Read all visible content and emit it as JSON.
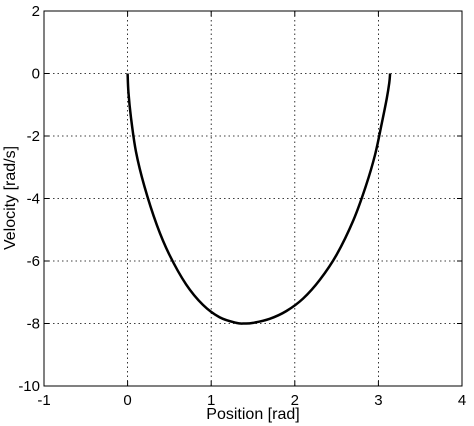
{
  "chart_data": {
    "type": "line",
    "title": "",
    "xlabel": "Position [rad]",
    "ylabel": "Velocity [rad/s]",
    "xlim": [
      -1,
      4
    ],
    "ylim": [
      -10,
      2
    ],
    "x_ticks": [
      -1,
      0,
      1,
      2,
      3,
      4
    ],
    "y_ticks": [
      -10,
      -8,
      -6,
      -4,
      -2,
      0,
      2
    ],
    "x_tick_labels": [
      "-1",
      "0",
      "1",
      "2",
      "3",
      "4"
    ],
    "y_tick_labels": [
      "-10",
      "-8",
      "-6",
      "-4",
      "-2",
      "0",
      "2"
    ],
    "grid": true,
    "grid_style": "dotted",
    "series": [
      {
        "color": "#000000",
        "points": [
          [
            0.0,
            0.0
          ],
          [
            0.01,
            -0.6
          ],
          [
            0.04,
            -1.4
          ],
          [
            0.1,
            -2.5
          ],
          [
            0.2,
            -3.6
          ],
          [
            0.35,
            -4.85
          ],
          [
            0.5,
            -5.8
          ],
          [
            0.7,
            -6.75
          ],
          [
            0.9,
            -7.4
          ],
          [
            1.1,
            -7.8
          ],
          [
            1.3,
            -7.98
          ],
          [
            1.4,
            -8.0
          ],
          [
            1.5,
            -7.98
          ],
          [
            1.7,
            -7.85
          ],
          [
            1.9,
            -7.6
          ],
          [
            2.1,
            -7.2
          ],
          [
            2.3,
            -6.6
          ],
          [
            2.5,
            -5.8
          ],
          [
            2.7,
            -4.7
          ],
          [
            2.85,
            -3.6
          ],
          [
            2.96,
            -2.6
          ],
          [
            3.04,
            -1.6
          ],
          [
            3.1,
            -0.8
          ],
          [
            3.13,
            -0.3
          ],
          [
            3.14,
            0.0
          ]
        ]
      }
    ]
  }
}
